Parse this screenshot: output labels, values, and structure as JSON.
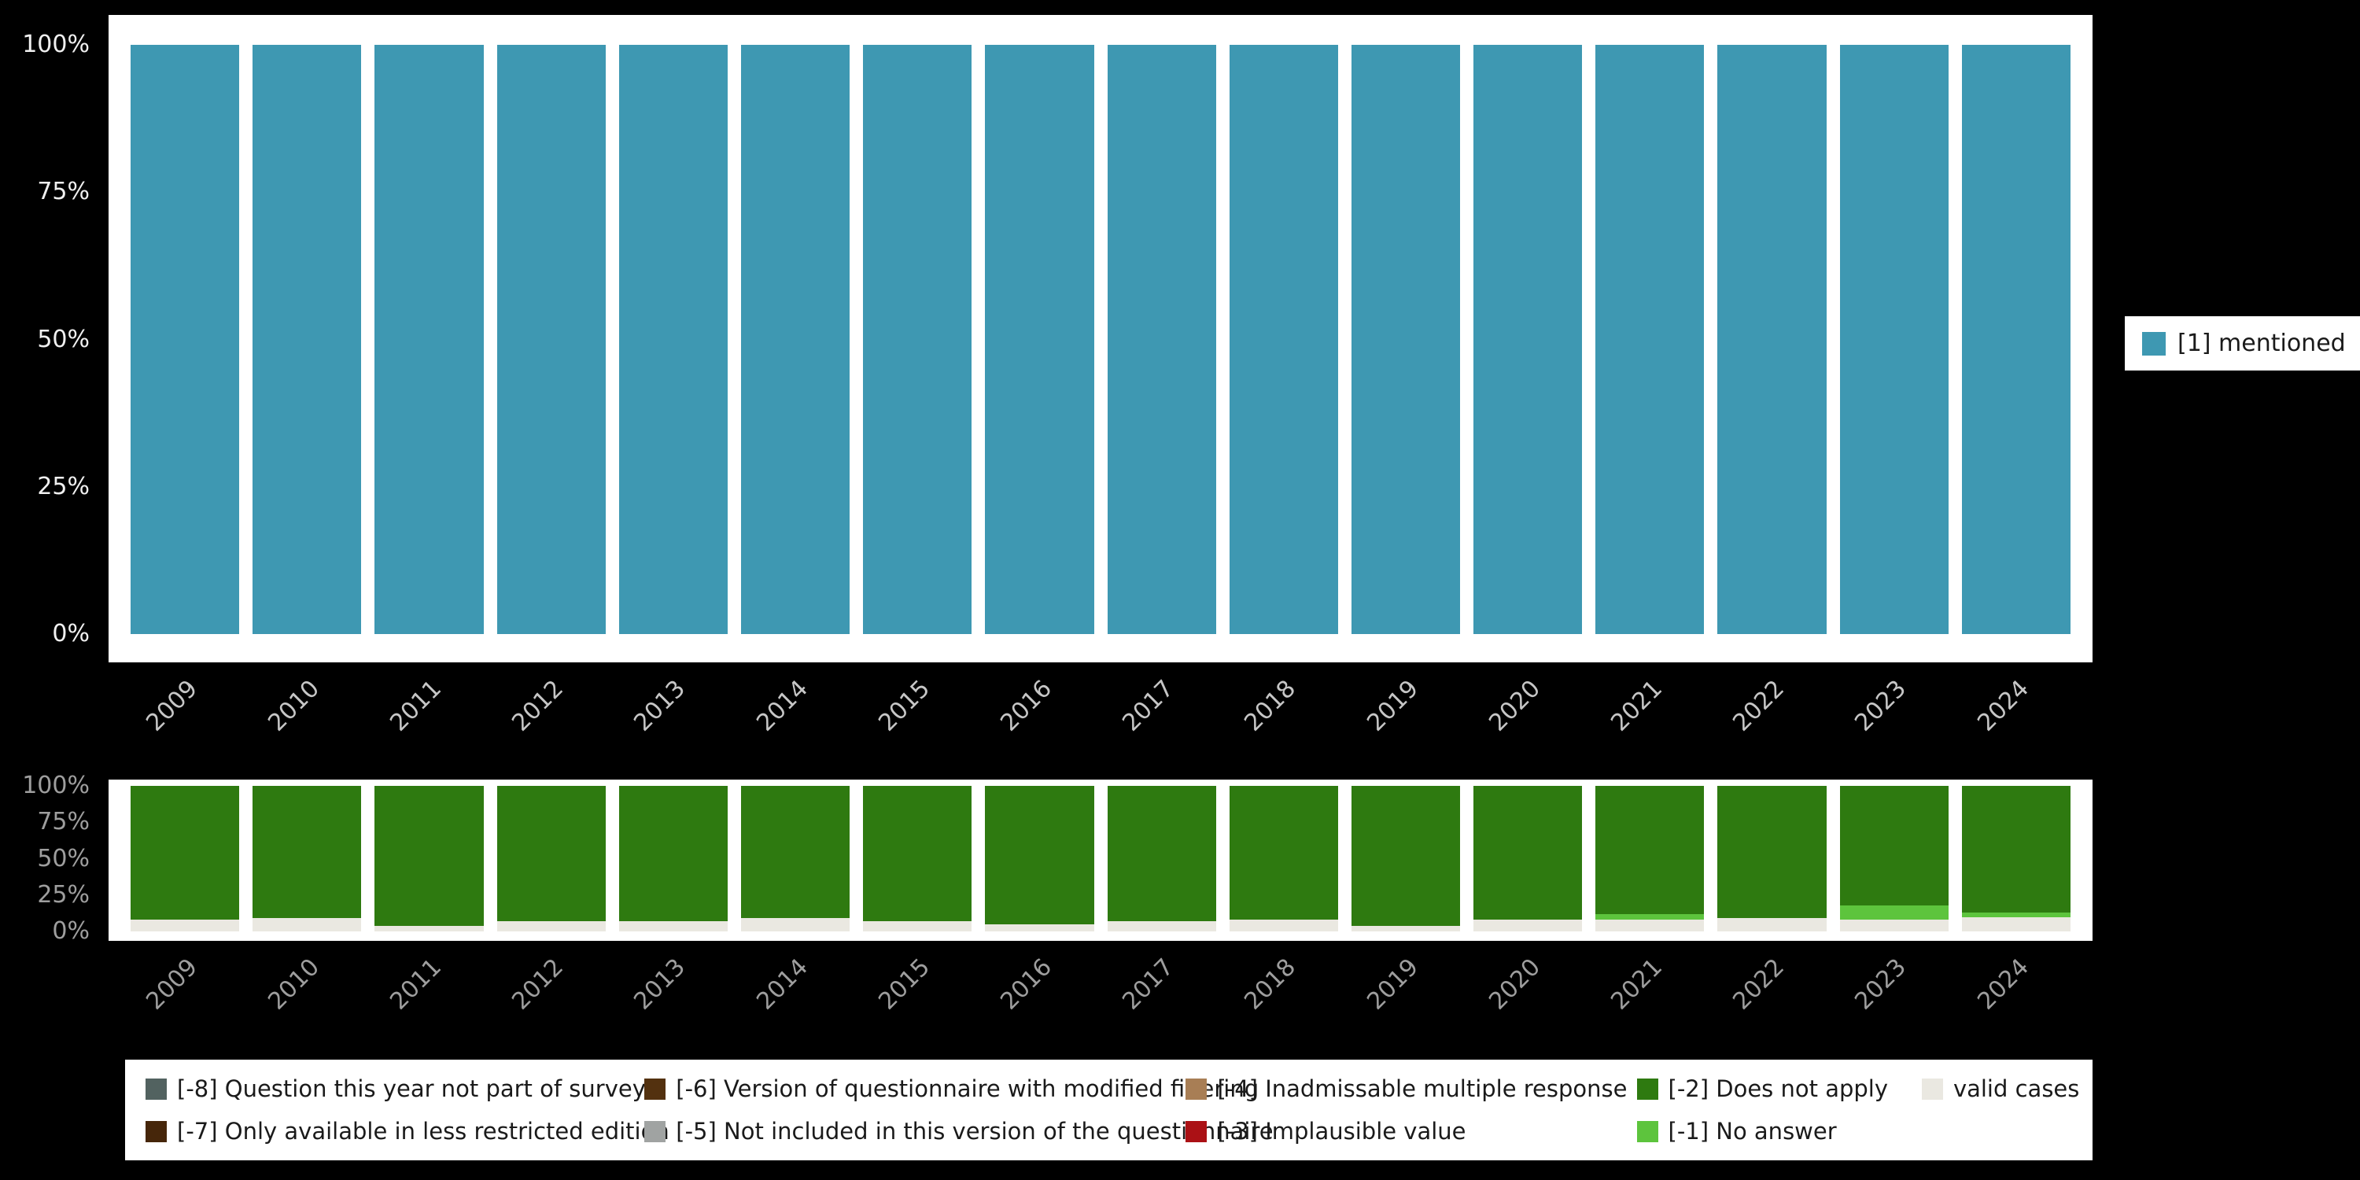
{
  "page": {
    "background_color": "#000000",
    "panel_color": "#ffffff"
  },
  "chart_data": [
    {
      "type": "bar",
      "stacked": true,
      "title": "",
      "xlabel": "",
      "ylabel": "",
      "ylim": [
        0,
        100
      ],
      "grid": false,
      "legend_position": "right",
      "categories": [
        "2009",
        "2010",
        "2011",
        "2012",
        "2013",
        "2014",
        "2015",
        "2016",
        "2017",
        "2018",
        "2019",
        "2020",
        "2021",
        "2022",
        "2023",
        "2024"
      ],
      "yticks": [
        {
          "label": "0%",
          "value": 0
        },
        {
          "label": "25%",
          "value": 25
        },
        {
          "label": "50%",
          "value": 50
        },
        {
          "label": "75%",
          "value": 75
        },
        {
          "label": "100%",
          "value": 100
        }
      ],
      "series": [
        {
          "name": "[1] mentioned",
          "color": "#3e98b2",
          "values": [
            100,
            100,
            100,
            100,
            100,
            100,
            100,
            100,
            100,
            100,
            100,
            100,
            100,
            100,
            100,
            100
          ]
        }
      ]
    },
    {
      "type": "bar",
      "stacked": true,
      "title": "",
      "xlabel": "",
      "ylabel": "",
      "ylim": [
        0,
        100
      ],
      "grid": false,
      "legend_position": "bottom-panel",
      "categories": [
        "2009",
        "2010",
        "2011",
        "2012",
        "2013",
        "2014",
        "2015",
        "2016",
        "2017",
        "2018",
        "2019",
        "2020",
        "2021",
        "2022",
        "2023",
        "2024"
      ],
      "yticks": [
        {
          "label": "0%",
          "value": 0
        },
        {
          "label": "25%",
          "value": 25
        },
        {
          "label": "50%",
          "value": 50
        },
        {
          "label": "75%",
          "value": 75
        },
        {
          "label": "100%",
          "value": 100
        }
      ],
      "series": [
        {
          "name": "valid cases",
          "color": "#eae8e1",
          "values": [
            8,
            9,
            4,
            7,
            7,
            9,
            7,
            5,
            7,
            8,
            4,
            8,
            8,
            9,
            8,
            10
          ]
        },
        {
          "name": "[-1] No answer",
          "color": "#5dc43d",
          "values": [
            0,
            0,
            0,
            0,
            0,
            0,
            0,
            0,
            0,
            0,
            0,
            0,
            4,
            0,
            10,
            3
          ]
        },
        {
          "name": "[-2] Does not apply",
          "color": "#2e7a10",
          "values": [
            92,
            91,
            96,
            93,
            93,
            91,
            93,
            95,
            93,
            92,
            96,
            92,
            88,
            91,
            82,
            87
          ]
        }
      ]
    }
  ],
  "missing_legend": {
    "items": [
      {
        "label": "[-8] Question this year not part of survey",
        "color": "#526260"
      },
      {
        "label": "[-7] Only available in less restricted edition",
        "color": "#46260a"
      },
      {
        "label": "[-6] Version of questionnaire with modified filtering",
        "color": "#53310f"
      },
      {
        "label": "[-5] Not included in this version of the questionnaire",
        "color": "#a0a3a2"
      },
      {
        "label": "[-4] Inadmissable multiple response",
        "color": "#a87e55"
      },
      {
        "label": "[-3] Implausible value",
        "color": "#ab1115"
      },
      {
        "label": "[-2] Does not apply",
        "color": "#2e7a10"
      },
      {
        "label": "[-1] No answer",
        "color": "#5dc43d"
      },
      {
        "label": "valid cases",
        "color": "#eae8e1"
      }
    ]
  }
}
